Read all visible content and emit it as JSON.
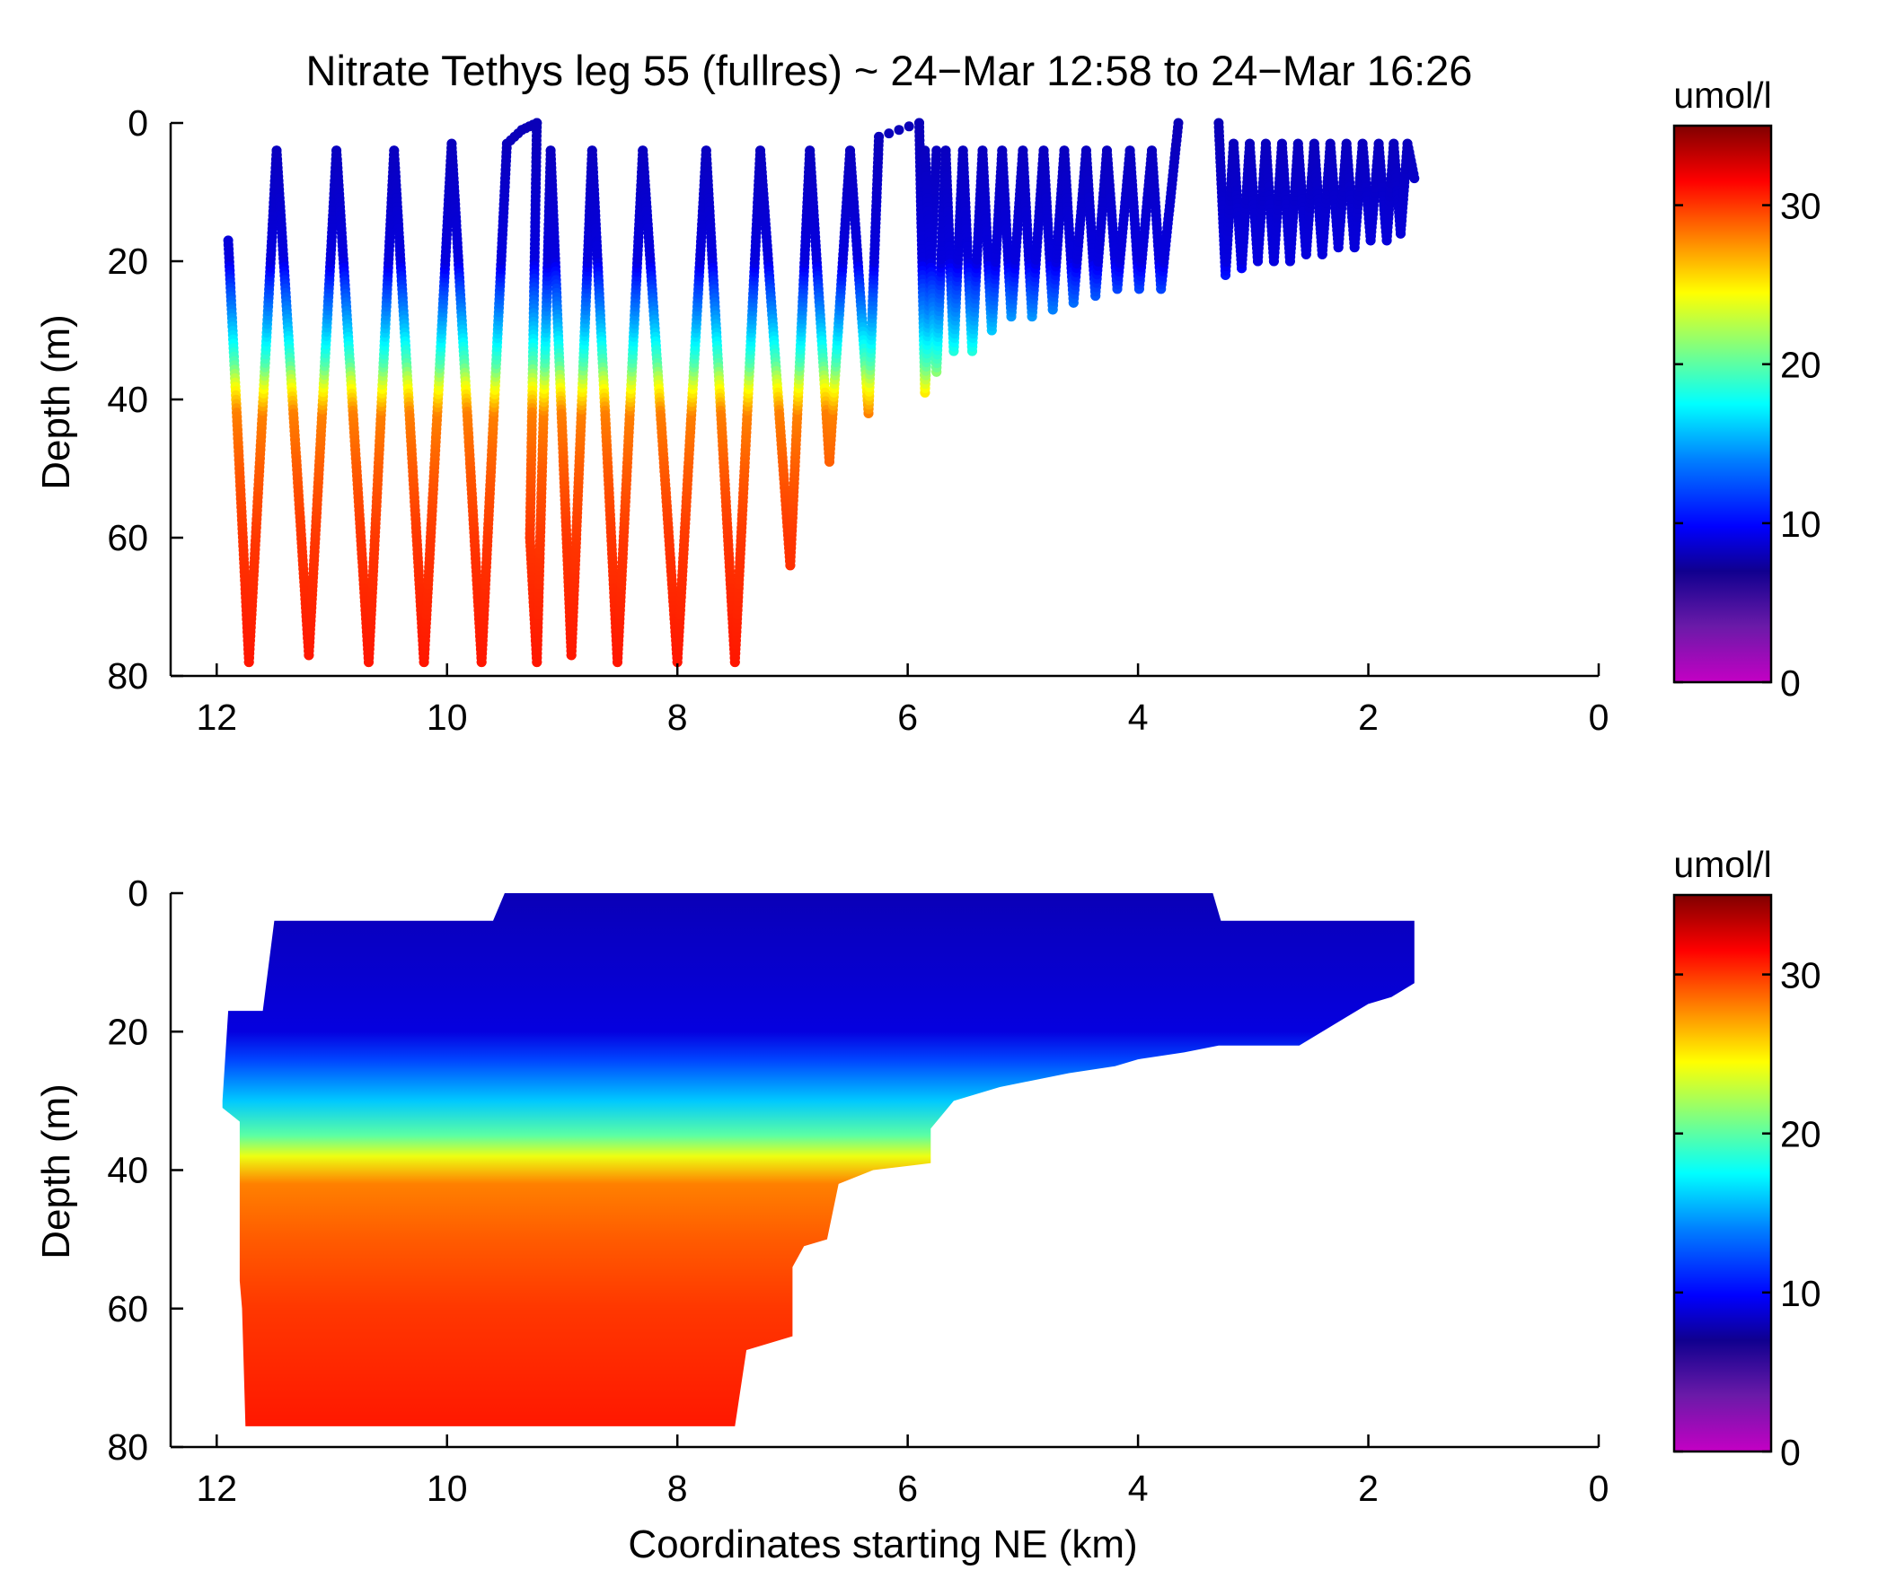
{
  "chart_data": [
    {
      "type": "scatter",
      "title": "Nitrate Tethys leg 55 (fullres) ~ 24−Mar 12:58 to 24−Mar 16:26",
      "xlabel": "",
      "ylabel": "Depth (m)",
      "xlim": [
        12.4,
        0
      ],
      "ylim": [
        0,
        80
      ],
      "y_reversed": true,
      "xticks": [
        12,
        10,
        8,
        6,
        4,
        2,
        0
      ],
      "xtick_labels": [
        "12",
        "10",
        "8",
        "6",
        "4",
        "2",
        "0"
      ],
      "yticks": [
        0,
        20,
        40,
        60,
        80
      ],
      "ytick_labels": [
        "0",
        "20",
        "40",
        "60",
        "80"
      ],
      "grid": false,
      "colorbar": {
        "label": "umol/l",
        "range": [
          0,
          35
        ],
        "ticks": [
          0,
          10,
          20,
          30
        ],
        "tick_labels": [
          "0",
          "10",
          "20",
          "30"
        ],
        "colormap": "jet"
      },
      "series": [
        {
          "x": [
            11.9,
            11.72,
            11.48,
            11.2,
            10.96,
            10.68,
            10.46,
            10.2,
            9.96,
            9.7,
            9.48,
            9.35,
            9.22,
            9.28,
            9.22,
            9.1,
            8.92,
            8.74,
            8.52,
            8.3,
            8.0,
            7.75,
            7.5,
            7.28,
            7.02,
            6.85,
            6.68,
            6.5,
            6.34,
            6.25,
            5.9,
            5.85,
            5.75
          ],
          "y": [
            17,
            78,
            4,
            77,
            4,
            78,
            4,
            78,
            3,
            78,
            3,
            1,
            0,
            60,
            78,
            4,
            77,
            4,
            78,
            4,
            78,
            4,
            78,
            4,
            64,
            4,
            49,
            4,
            42,
            2,
            0,
            39,
            4
          ]
        },
        {
          "x": [
            5.85,
            5.75,
            5.67,
            5.6,
            5.52,
            5.44,
            5.35,
            5.27,
            5.18,
            5.1,
            5.0,
            4.92,
            4.82,
            4.74,
            4.64,
            4.56,
            4.45,
            4.37,
            4.27,
            4.18,
            4.07,
            3.99,
            3.88,
            3.8,
            3.65
          ],
          "y": [
            4,
            36,
            4,
            33,
            4,
            33,
            4,
            30,
            4,
            28,
            4,
            28,
            4,
            27,
            4,
            26,
            4,
            25,
            4,
            24,
            4,
            24,
            4,
            24,
            0
          ]
        },
        {
          "x": [
            3.3,
            3.24,
            3.17,
            3.1,
            3.03,
            2.96,
            2.89,
            2.82,
            2.75,
            2.68,
            2.61,
            2.54,
            2.47,
            2.4,
            2.33,
            2.26,
            2.19,
            2.12,
            2.05,
            1.98,
            1.91,
            1.84,
            1.78,
            1.72,
            1.66,
            1.6
          ],
          "y": [
            0,
            22,
            3,
            21,
            3,
            20,
            3,
            20,
            3,
            20,
            3,
            19,
            3,
            19,
            3,
            18,
            3,
            18,
            3,
            17,
            3,
            17,
            3,
            16,
            3,
            8
          ]
        }
      ],
      "nitrate_depth_profile": {
        "depth": [
          0,
          20,
          24,
          30,
          35,
          38,
          42,
          50,
          60,
          80
        ],
        "nitrate": [
          8,
          9,
          12,
          16,
          20,
          24,
          28,
          29,
          30,
          31
        ]
      }
    },
    {
      "type": "heatmap",
      "title": "",
      "xlabel": "Coordinates starting NE (km)",
      "ylabel": "Depth (m)",
      "xlim": [
        12.4,
        0
      ],
      "ylim": [
        0,
        80
      ],
      "y_reversed": true,
      "xticks": [
        12,
        10,
        8,
        6,
        4,
        2,
        0
      ],
      "xtick_labels": [
        "12",
        "10",
        "8",
        "6",
        "4",
        "2",
        "0"
      ],
      "yticks": [
        0,
        20,
        40,
        60,
        80
      ],
      "ytick_labels": [
        "0",
        "20",
        "40",
        "60",
        "80"
      ],
      "grid": false,
      "colorbar": {
        "label": "umol/l",
        "range": [
          0,
          35
        ],
        "ticks": [
          0,
          10,
          20,
          30
        ],
        "tick_labels": [
          "0",
          "10",
          "20",
          "30"
        ],
        "colormap": "jet"
      },
      "coverage_outline": {
        "x": [
          11.9,
          11.6,
          11.5,
          9.6,
          9.5,
          3.35,
          3.28,
          1.6,
          1.6,
          1.8,
          2.0,
          2.2,
          2.6,
          3.3,
          3.6,
          4.0,
          4.2,
          4.6,
          4.9,
          5.2,
          5.6,
          5.8,
          5.8,
          6.3,
          6.6,
          6.7,
          6.9,
          7.0,
          7.0,
          7.4,
          7.5,
          11.75,
          11.78,
          11.8,
          11.8,
          11.95,
          11.95
        ],
        "y": [
          17,
          17,
          4,
          4,
          0,
          0,
          4,
          4,
          13,
          15,
          16,
          18,
          22,
          22,
          23,
          24,
          25,
          26,
          27,
          28,
          30,
          34,
          39,
          40,
          42,
          50,
          51,
          54,
          64,
          66,
          77,
          77,
          60,
          56,
          33,
          31,
          30
        ]
      },
      "nitrate_depth_profile": {
        "depth": [
          0,
          20,
          24,
          30,
          35,
          38,
          42,
          50,
          60,
          80
        ],
        "nitrate": [
          8,
          9,
          12,
          16,
          20,
          24,
          28,
          29,
          30,
          31
        ]
      }
    }
  ]
}
